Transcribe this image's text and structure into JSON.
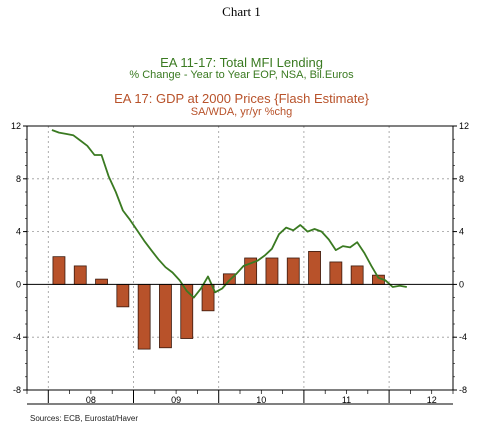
{
  "header": {
    "chart_label": "Chart 1"
  },
  "chart_data": {
    "type": "bar+line",
    "title_lines": [
      "EA 11-17: Total MFI Lending",
      "% Change - Year to Year    EOP, NSA, Bil.Euros",
      "EA 17: GDP at 2000 Prices {Flash Estimate}",
      "SA/WDA, yr/yr %chg"
    ],
    "x_ticks": [
      "08",
      "09",
      "10",
      "11",
      "12"
    ],
    "y_ticks": [
      "-8",
      "-4",
      "0",
      "4",
      "8",
      "12"
    ],
    "ylim": [
      -8,
      12
    ],
    "grid": "dashed",
    "series": [
      {
        "name": "EA 17: GDP at 2000 Prices {Flash Estimate}",
        "kind": "bar",
        "color": "#b8522a",
        "x": [
          "2008-Q1",
          "2008-Q2",
          "2008-Q3",
          "2008-Q4",
          "2009-Q1",
          "2009-Q2",
          "2009-Q3",
          "2009-Q4",
          "2010-Q1",
          "2010-Q2",
          "2010-Q3",
          "2010-Q4",
          "2011-Q1",
          "2011-Q2",
          "2011-Q3",
          "2011-Q4"
        ],
        "values": [
          2.1,
          1.4,
          0.4,
          -1.7,
          -4.9,
          -4.8,
          -4.1,
          -2.0,
          0.8,
          2.0,
          2.0,
          2.0,
          2.5,
          1.7,
          1.4,
          0.7
        ]
      },
      {
        "name": "EA 11-17: Total MFI Lending",
        "kind": "line",
        "color": "#3a7a21",
        "x": [
          "2008-01",
          "2008-02",
          "2008-03",
          "2008-04",
          "2008-05",
          "2008-06",
          "2008-07",
          "2008-08",
          "2008-09",
          "2008-10",
          "2008-11",
          "2008-12",
          "2009-01",
          "2009-02",
          "2009-03",
          "2009-04",
          "2009-05",
          "2009-06",
          "2009-07",
          "2009-08",
          "2009-09",
          "2009-10",
          "2009-11",
          "2009-12",
          "2010-01",
          "2010-02",
          "2010-03",
          "2010-04",
          "2010-05",
          "2010-06",
          "2010-07",
          "2010-08",
          "2010-09",
          "2010-10",
          "2010-11",
          "2010-12",
          "2011-01",
          "2011-02",
          "2011-03",
          "2011-04",
          "2011-05",
          "2011-06",
          "2011-07",
          "2011-08",
          "2011-09",
          "2011-10",
          "2011-11",
          "2011-12",
          "2012-01",
          "2012-02",
          "2012-03"
        ],
        "values": [
          11.7,
          11.5,
          11.4,
          11.3,
          10.9,
          10.5,
          9.8,
          9.8,
          8.2,
          7.0,
          5.6,
          4.9,
          4.1,
          3.3,
          2.6,
          1.9,
          1.3,
          0.9,
          0.3,
          -0.5,
          -1.0,
          -0.3,
          0.6,
          -0.6,
          -0.3,
          0.3,
          0.8,
          1.4,
          1.6,
          1.8,
          2.2,
          2.7,
          3.8,
          4.3,
          4.1,
          4.5,
          4.0,
          4.2,
          4.0,
          3.4,
          2.6,
          2.9,
          2.8,
          3.2,
          2.4,
          1.4,
          0.5,
          0.3,
          -0.2,
          -0.1,
          -0.2
        ]
      }
    ]
  },
  "footer": {
    "source": "Sources:  ECB, Eurostat/Haver"
  }
}
